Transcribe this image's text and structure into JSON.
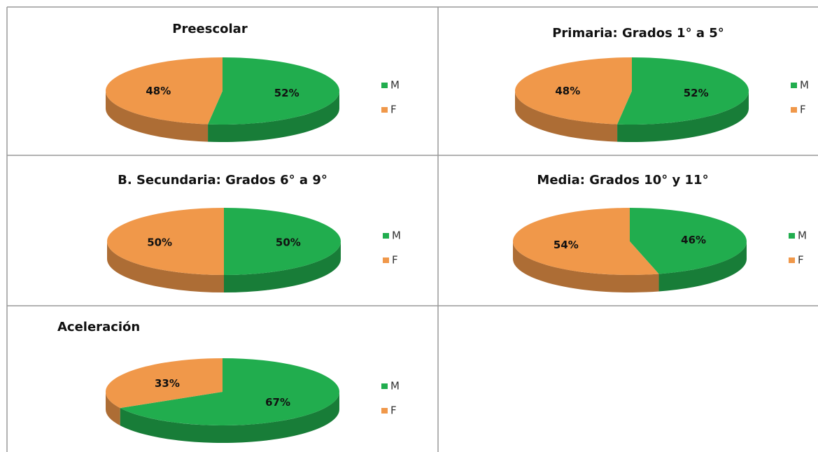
{
  "chart_data": [
    {
      "type": "pie",
      "title": "Preescolar",
      "categories": [
        "M",
        "F"
      ],
      "values": [
        52,
        48
      ],
      "value_labels": [
        "52%",
        "48%"
      ],
      "colors": [
        "#21ad4e",
        "#f0984a"
      ]
    },
    {
      "type": "pie",
      "title": "Primaria: Grados  1° a 5°",
      "categories": [
        "M",
        "F"
      ],
      "values": [
        52,
        48
      ],
      "value_labels": [
        "52%",
        "48%"
      ],
      "colors": [
        "#21ad4e",
        "#f0984a"
      ]
    },
    {
      "type": "pie",
      "title": "B. Secundaria: Grados 6° a 9°",
      "categories": [
        "M",
        "F"
      ],
      "values": [
        50,
        50
      ],
      "value_labels": [
        "50%",
        "50%"
      ],
      "colors": [
        "#21ad4e",
        "#f0984a"
      ]
    },
    {
      "type": "pie",
      "title": "Media: Grados 10° y 11°",
      "categories": [
        "M",
        "F"
      ],
      "values": [
        46,
        54
      ],
      "value_labels": [
        "46%",
        "54%"
      ],
      "colors": [
        "#21ad4e",
        "#f0984a"
      ]
    },
    {
      "type": "pie",
      "title": "Aceleración",
      "categories": [
        "M",
        "F"
      ],
      "values": [
        67,
        33
      ],
      "value_labels": [
        "67%",
        "33%"
      ],
      "colors": [
        "#21ad4e",
        "#f0984a"
      ]
    }
  ]
}
